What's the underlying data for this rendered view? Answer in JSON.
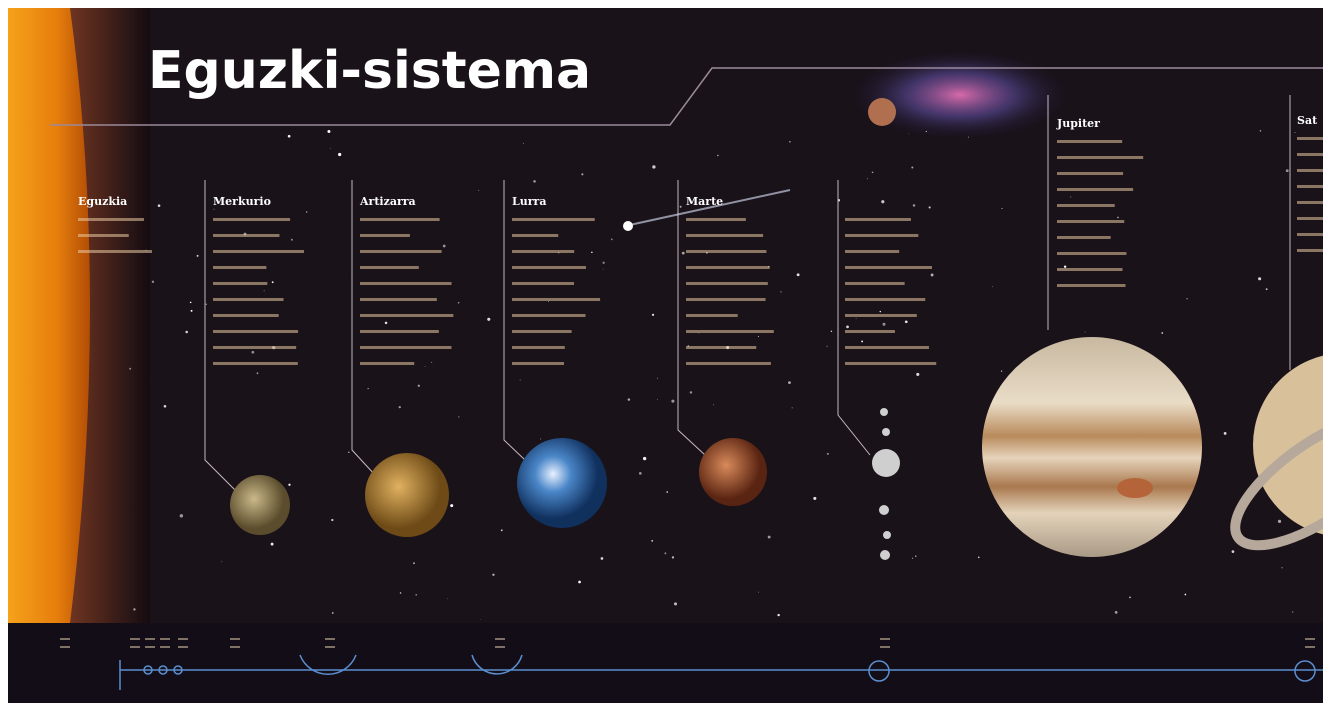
{
  "header": {
    "title": "Eguzki-sistema"
  },
  "columns": [
    {
      "label": "Eguzkia"
    },
    {
      "label": "Merkurio"
    },
    {
      "label": "Artizarra"
    },
    {
      "label": "Lurra"
    },
    {
      "label": "Marte"
    },
    {
      "label": "Jupiter"
    },
    {
      "label": "Sat"
    }
  ]
}
